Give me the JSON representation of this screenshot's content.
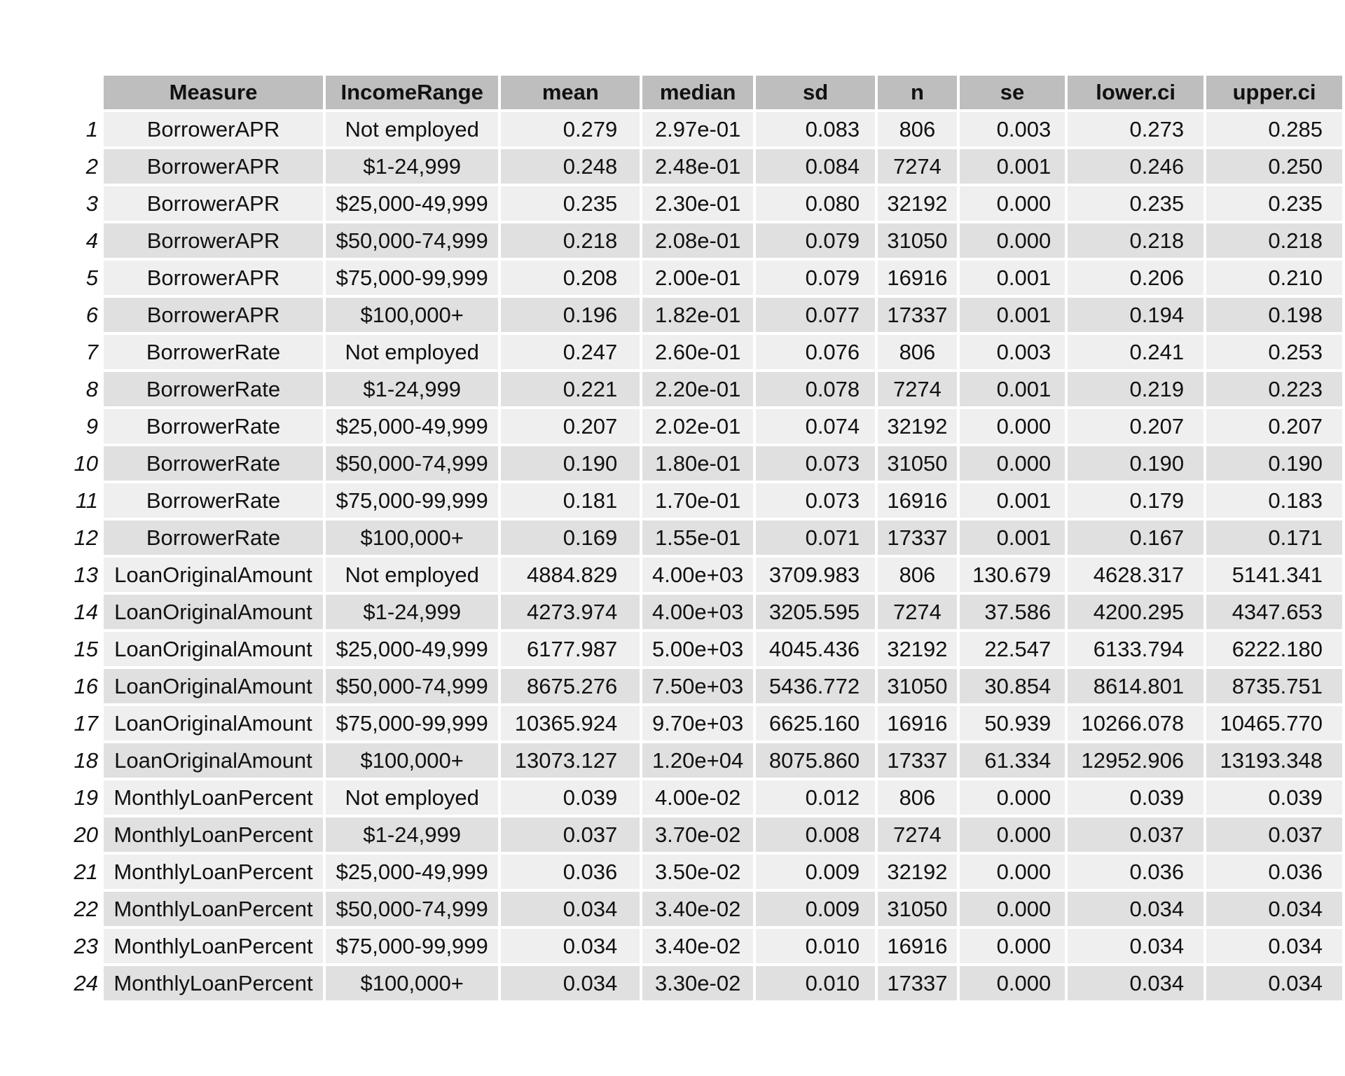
{
  "table": {
    "headers": {
      "measure": "Measure",
      "income_range": "IncomeRange",
      "mean": "mean",
      "median": "median",
      "sd": "sd",
      "n": "n",
      "se": "se",
      "lower_ci": "lower.ci",
      "upper_ci": "upper.ci"
    },
    "rows": [
      {
        "num": "1",
        "measure": "BorrowerAPR",
        "income": "Not employed",
        "mean": "0.279",
        "median": "2.97e-01",
        "sd": "0.083",
        "n": "806",
        "se": "0.003",
        "lower": "0.273",
        "upper": "0.285"
      },
      {
        "num": "2",
        "measure": "BorrowerAPR",
        "income": "$1-24,999",
        "mean": "0.248",
        "median": "2.48e-01",
        "sd": "0.084",
        "n": "7274",
        "se": "0.001",
        "lower": "0.246",
        "upper": "0.250"
      },
      {
        "num": "3",
        "measure": "BorrowerAPR",
        "income": "$25,000-49,999",
        "mean": "0.235",
        "median": "2.30e-01",
        "sd": "0.080",
        "n": "32192",
        "se": "0.000",
        "lower": "0.235",
        "upper": "0.235"
      },
      {
        "num": "4",
        "measure": "BorrowerAPR",
        "income": "$50,000-74,999",
        "mean": "0.218",
        "median": "2.08e-01",
        "sd": "0.079",
        "n": "31050",
        "se": "0.000",
        "lower": "0.218",
        "upper": "0.218"
      },
      {
        "num": "5",
        "measure": "BorrowerAPR",
        "income": "$75,000-99,999",
        "mean": "0.208",
        "median": "2.00e-01",
        "sd": "0.079",
        "n": "16916",
        "se": "0.001",
        "lower": "0.206",
        "upper": "0.210"
      },
      {
        "num": "6",
        "measure": "BorrowerAPR",
        "income": "$100,000+",
        "mean": "0.196",
        "median": "1.82e-01",
        "sd": "0.077",
        "n": "17337",
        "se": "0.001",
        "lower": "0.194",
        "upper": "0.198"
      },
      {
        "num": "7",
        "measure": "BorrowerRate",
        "income": "Not employed",
        "mean": "0.247",
        "median": "2.60e-01",
        "sd": "0.076",
        "n": "806",
        "se": "0.003",
        "lower": "0.241",
        "upper": "0.253"
      },
      {
        "num": "8",
        "measure": "BorrowerRate",
        "income": "$1-24,999",
        "mean": "0.221",
        "median": "2.20e-01",
        "sd": "0.078",
        "n": "7274",
        "se": "0.001",
        "lower": "0.219",
        "upper": "0.223"
      },
      {
        "num": "9",
        "measure": "BorrowerRate",
        "income": "$25,000-49,999",
        "mean": "0.207",
        "median": "2.02e-01",
        "sd": "0.074",
        "n": "32192",
        "se": "0.000",
        "lower": "0.207",
        "upper": "0.207"
      },
      {
        "num": "10",
        "measure": "BorrowerRate",
        "income": "$50,000-74,999",
        "mean": "0.190",
        "median": "1.80e-01",
        "sd": "0.073",
        "n": "31050",
        "se": "0.000",
        "lower": "0.190",
        "upper": "0.190"
      },
      {
        "num": "11",
        "measure": "BorrowerRate",
        "income": "$75,000-99,999",
        "mean": "0.181",
        "median": "1.70e-01",
        "sd": "0.073",
        "n": "16916",
        "se": "0.001",
        "lower": "0.179",
        "upper": "0.183"
      },
      {
        "num": "12",
        "measure": "BorrowerRate",
        "income": "$100,000+",
        "mean": "0.169",
        "median": "1.55e-01",
        "sd": "0.071",
        "n": "17337",
        "se": "0.001",
        "lower": "0.167",
        "upper": "0.171"
      },
      {
        "num": "13",
        "measure": "LoanOriginalAmount",
        "income": "Not employed",
        "mean": "4884.829",
        "median": "4.00e+03",
        "sd": "3709.983",
        "n": "806",
        "se": "130.679",
        "lower": "4628.317",
        "upper": "5141.341"
      },
      {
        "num": "14",
        "measure": "LoanOriginalAmount",
        "income": "$1-24,999",
        "mean": "4273.974",
        "median": "4.00e+03",
        "sd": "3205.595",
        "n": "7274",
        "se": "37.586",
        "lower": "4200.295",
        "upper": "4347.653"
      },
      {
        "num": "15",
        "measure": "LoanOriginalAmount",
        "income": "$25,000-49,999",
        "mean": "6177.987",
        "median": "5.00e+03",
        "sd": "4045.436",
        "n": "32192",
        "se": "22.547",
        "lower": "6133.794",
        "upper": "6222.180"
      },
      {
        "num": "16",
        "measure": "LoanOriginalAmount",
        "income": "$50,000-74,999",
        "mean": "8675.276",
        "median": "7.50e+03",
        "sd": "5436.772",
        "n": "31050",
        "se": "30.854",
        "lower": "8614.801",
        "upper": "8735.751"
      },
      {
        "num": "17",
        "measure": "LoanOriginalAmount",
        "income": "$75,000-99,999",
        "mean": "10365.924",
        "median": "9.70e+03",
        "sd": "6625.160",
        "n": "16916",
        "se": "50.939",
        "lower": "10266.078",
        "upper": "10465.770"
      },
      {
        "num": "18",
        "measure": "LoanOriginalAmount",
        "income": "$100,000+",
        "mean": "13073.127",
        "median": "1.20e+04",
        "sd": "8075.860",
        "n": "17337",
        "se": "61.334",
        "lower": "12952.906",
        "upper": "13193.348"
      },
      {
        "num": "19",
        "measure": "MonthlyLoanPercent",
        "income": "Not employed",
        "mean": "0.039",
        "median": "4.00e-02",
        "sd": "0.012",
        "n": "806",
        "se": "0.000",
        "lower": "0.039",
        "upper": "0.039"
      },
      {
        "num": "20",
        "measure": "MonthlyLoanPercent",
        "income": "$1-24,999",
        "mean": "0.037",
        "median": "3.70e-02",
        "sd": "0.008",
        "n": "7274",
        "se": "0.000",
        "lower": "0.037",
        "upper": "0.037"
      },
      {
        "num": "21",
        "measure": "MonthlyLoanPercent",
        "income": "$25,000-49,999",
        "mean": "0.036",
        "median": "3.50e-02",
        "sd": "0.009",
        "n": "32192",
        "se": "0.000",
        "lower": "0.036",
        "upper": "0.036"
      },
      {
        "num": "22",
        "measure": "MonthlyLoanPercent",
        "income": "$50,000-74,999",
        "mean": "0.034",
        "median": "3.40e-02",
        "sd": "0.009",
        "n": "31050",
        "se": "0.000",
        "lower": "0.034",
        "upper": "0.034"
      },
      {
        "num": "23",
        "measure": "MonthlyLoanPercent",
        "income": "$75,000-99,999",
        "mean": "0.034",
        "median": "3.40e-02",
        "sd": "0.010",
        "n": "16916",
        "se": "0.000",
        "lower": "0.034",
        "upper": "0.034"
      },
      {
        "num": "24",
        "measure": "MonthlyLoanPercent",
        "income": "$100,000+",
        "mean": "0.034",
        "median": "3.30e-02",
        "sd": "0.010",
        "n": "17337",
        "se": "0.000",
        "lower": "0.034",
        "upper": "0.034"
      }
    ]
  }
}
